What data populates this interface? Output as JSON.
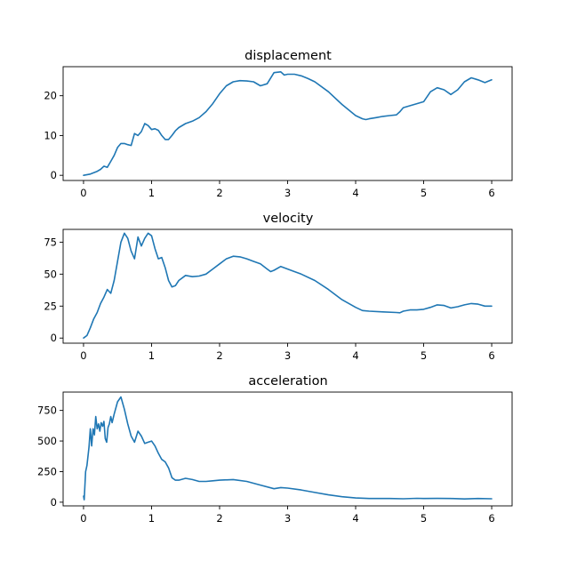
{
  "chart_data": [
    {
      "type": "line",
      "title": "displacement",
      "xlabel": "",
      "ylabel": "",
      "xlim": [
        -0.3,
        6.3
      ],
      "ylim": [
        -1.3,
        27.3
      ],
      "xticks": [
        0,
        1,
        2,
        3,
        4,
        5,
        6
      ],
      "yticks": [
        0,
        10,
        20
      ],
      "grid": false,
      "color": "#1f77b4",
      "series": [
        {
          "x": [
            0,
            0.1,
            0.2,
            0.25,
            0.3,
            0.35,
            0.4,
            0.45,
            0.5,
            0.55,
            0.6,
            0.65,
            0.7,
            0.75,
            0.8,
            0.85,
            0.9,
            0.95,
            1.0,
            1.05,
            1.1,
            1.15,
            1.2,
            1.25,
            1.3,
            1.35,
            1.4,
            1.5,
            1.6,
            1.7,
            1.8,
            1.9,
            2.0,
            2.1,
            2.2,
            2.3,
            2.4,
            2.5,
            2.6,
            2.7,
            2.8,
            2.9,
            2.95,
            3.0,
            3.1,
            3.2,
            3.3,
            3.4,
            3.6,
            3.8,
            4.0,
            4.1,
            4.15,
            4.2,
            4.3,
            4.4,
            4.5,
            4.6,
            4.65,
            4.7,
            4.8,
            4.9,
            5.0,
            5.1,
            5.2,
            5.3,
            5.4,
            5.5,
            5.6,
            5.7,
            5.8,
            5.9,
            6.0
          ],
          "y": [
            0,
            0.3,
            1.0,
            1.5,
            2.3,
            2.0,
            3.5,
            5.0,
            7.0,
            8.0,
            8.0,
            7.7,
            7.5,
            10.5,
            10.0,
            11.0,
            13.0,
            12.5,
            11.5,
            11.7,
            11.3,
            10.0,
            9.0,
            9.0,
            10.0,
            11.2,
            12.0,
            13.0,
            13.6,
            14.5,
            16.0,
            18.0,
            20.5,
            22.5,
            23.5,
            23.8,
            23.7,
            23.5,
            22.5,
            23.0,
            25.8,
            26.0,
            25.2,
            25.4,
            25.4,
            25.0,
            24.3,
            23.5,
            21.0,
            17.8,
            15.0,
            14.2,
            14.0,
            14.2,
            14.5,
            14.8,
            15.0,
            15.2,
            16.0,
            17.0,
            17.5,
            18.0,
            18.5,
            21.0,
            22.0,
            21.5,
            20.3,
            21.5,
            23.5,
            24.5,
            24.0,
            23.3,
            24.0
          ]
        }
      ]
    },
    {
      "type": "line",
      "title": "velocity",
      "xlabel": "",
      "ylabel": "",
      "xlim": [
        -0.3,
        6.3
      ],
      "ylim": [
        -4.0,
        85.0
      ],
      "xticks": [
        0,
        1,
        2,
        3,
        4,
        5,
        6
      ],
      "yticks": [
        0,
        25,
        50,
        75
      ],
      "grid": false,
      "color": "#1f77b4",
      "series": [
        {
          "x": [
            0,
            0.05,
            0.1,
            0.15,
            0.2,
            0.25,
            0.3,
            0.35,
            0.4,
            0.45,
            0.5,
            0.55,
            0.6,
            0.65,
            0.7,
            0.75,
            0.8,
            0.85,
            0.9,
            0.95,
            1.0,
            1.05,
            1.1,
            1.15,
            1.2,
            1.25,
            1.3,
            1.35,
            1.4,
            1.5,
            1.6,
            1.7,
            1.8,
            1.9,
            2.0,
            2.1,
            2.2,
            2.3,
            2.4,
            2.5,
            2.6,
            2.7,
            2.75,
            2.8,
            2.9,
            3.0,
            3.1,
            3.2,
            3.4,
            3.6,
            3.8,
            4.0,
            4.1,
            4.2,
            4.4,
            4.6,
            4.65,
            4.7,
            4.8,
            4.9,
            5.0,
            5.1,
            5.2,
            5.3,
            5.4,
            5.5,
            5.6,
            5.7,
            5.8,
            5.9,
            6.0
          ],
          "y": [
            0,
            2,
            8,
            15,
            20,
            27,
            32,
            38,
            35,
            45,
            60,
            75,
            82,
            78,
            68,
            62,
            79,
            72,
            78,
            82,
            80,
            70,
            62,
            63,
            55,
            45,
            40,
            41,
            45,
            49,
            48,
            48.5,
            50,
            54,
            58,
            62,
            64,
            63.5,
            62,
            60,
            58,
            54,
            52,
            53,
            56,
            54,
            52,
            50,
            45,
            38,
            30,
            24,
            21.5,
            21,
            20.5,
            20,
            19.8,
            21,
            22,
            22,
            22.5,
            24,
            26,
            25.5,
            23.5,
            24.5,
            26,
            27,
            26.5,
            25,
            25
          ]
        }
      ]
    },
    {
      "type": "line",
      "title": "acceleration",
      "xlabel": "",
      "ylabel": "",
      "xlim": [
        -0.3,
        6.3
      ],
      "ylim": [
        -30,
        900
      ],
      "xticks": [
        0,
        1,
        2,
        3,
        4,
        5,
        6
      ],
      "yticks": [
        0,
        250,
        500,
        750
      ],
      "grid": false,
      "color": "#1f77b4",
      "series": [
        {
          "x": [
            0,
            0.01,
            0.03,
            0.05,
            0.08,
            0.1,
            0.12,
            0.14,
            0.16,
            0.18,
            0.2,
            0.22,
            0.24,
            0.26,
            0.28,
            0.3,
            0.32,
            0.34,
            0.36,
            0.38,
            0.4,
            0.42,
            0.45,
            0.5,
            0.55,
            0.6,
            0.65,
            0.7,
            0.75,
            0.8,
            0.85,
            0.9,
            0.95,
            1.0,
            1.05,
            1.1,
            1.15,
            1.2,
            1.25,
            1.3,
            1.35,
            1.4,
            1.5,
            1.6,
            1.7,
            1.8,
            1.9,
            2.0,
            2.2,
            2.4,
            2.6,
            2.8,
            2.9,
            3.0,
            3.2,
            3.4,
            3.6,
            3.8,
            4.0,
            4.2,
            4.5,
            4.7,
            4.9,
            5.0,
            5.2,
            5.4,
            5.6,
            5.8,
            6.0
          ],
          "y": [
            50,
            20,
            250,
            300,
            450,
            600,
            460,
            600,
            550,
            700,
            600,
            640,
            580,
            650,
            620,
            660,
            520,
            490,
            610,
            640,
            700,
            650,
            720,
            820,
            860,
            760,
            640,
            540,
            490,
            580,
            540,
            480,
            490,
            500,
            460,
            400,
            350,
            330,
            280,
            200,
            180,
            180,
            195,
            185,
            170,
            170,
            175,
            180,
            185,
            170,
            140,
            110,
            120,
            115,
            100,
            80,
            60,
            45,
            35,
            30,
            30,
            28,
            32,
            30,
            31,
            30,
            27,
            30,
            28
          ]
        }
      ]
    }
  ]
}
